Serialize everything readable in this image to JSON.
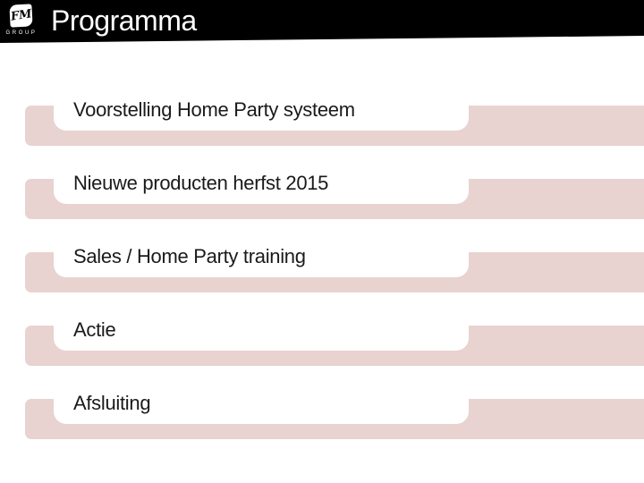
{
  "header": {
    "title": "Programma",
    "logo": {
      "monogram": "FM",
      "caption": "GROUP"
    }
  },
  "agenda": {
    "items": [
      {
        "label": "Voorstelling Home Party systeem"
      },
      {
        "label": "Nieuwe producten herfst 2015"
      },
      {
        "label": "Sales / Home Party training"
      },
      {
        "label": "Actie"
      },
      {
        "label": "Afsluiting"
      }
    ]
  },
  "colors": {
    "header_bg": "#000000",
    "title_text": "#ffffff",
    "band": "#e8d3d1",
    "card_bg": "#ffffff",
    "item_text": "#1a1a1a"
  }
}
